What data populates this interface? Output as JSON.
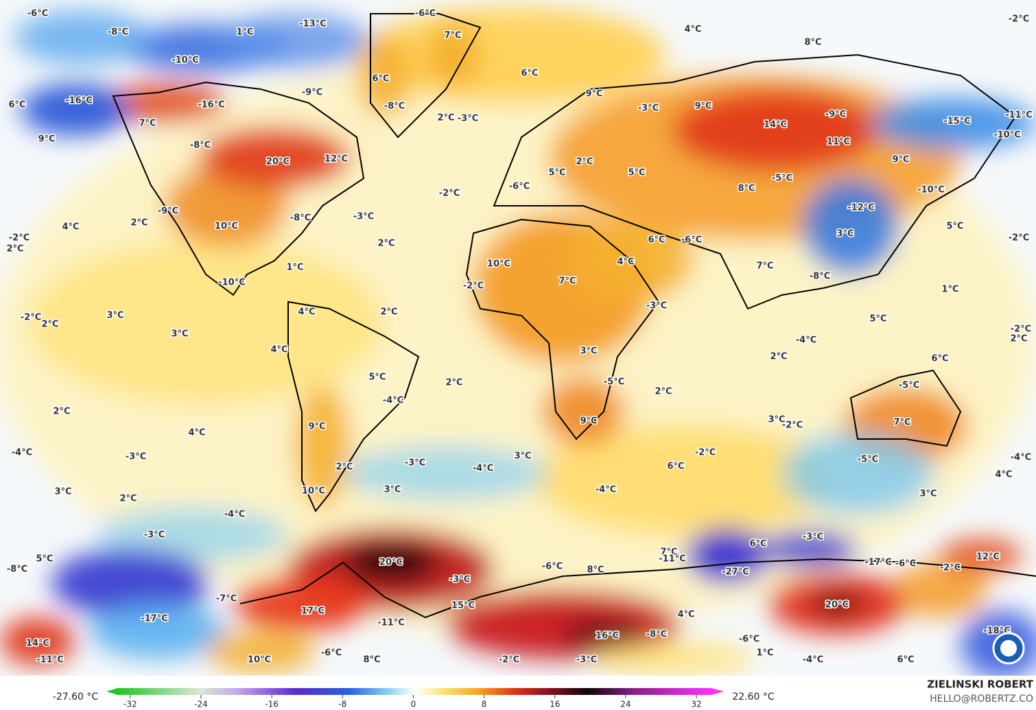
{
  "map": {
    "labels": [
      "-6°C",
      "-8°C",
      "1°C",
      "-13°C",
      "-6°C",
      "7°C",
      "4°C",
      "-2°C",
      "8°C",
      "-10°C",
      "6°C",
      "6°C",
      "-16°C",
      "-16°C",
      "-9°C",
      "-8°C",
      "9°C",
      "-3°C",
      "9°C",
      "6°C",
      "7°C",
      "2°C",
      "-3°C",
      "14°C",
      "-9°C",
      "-15°C",
      "-11°C",
      "9°C",
      "-8°C",
      "11°C",
      "-10°C",
      "20°C",
      "12°C",
      "5°C",
      "2°C",
      "9°C",
      "-6°C",
      "5°C",
      "-2°C",
      "8°C",
      "-5°C",
      "-10°C",
      "-9°C",
      "-8°C",
      "-3°C",
      "-12°C",
      "4°C",
      "2°C",
      "10°C",
      "5°C",
      "-2°C",
      "2°C",
      "2°C",
      "6°C",
      "-6°C",
      "3°C",
      "-2°C",
      "4°C",
      "7°C",
      "10°C",
      "-2°C",
      "7°C",
      "1°C",
      "-10°C",
      "-8°C",
      "1°C",
      "-3°C",
      "4°C",
      "-2°C",
      "2°C",
      "3°C",
      "2°C",
      "5°C",
      "3°C",
      "-4°C",
      "-2°C",
      "2°C",
      "4°C",
      "3°C",
      "2°C",
      "6°C",
      "5°C",
      "-5°C",
      "2°C",
      "-5°C",
      "-4°C",
      "2°C",
      "2°C",
      "9°C",
      "3°C",
      "-2°C",
      "7°C",
      "4°C",
      "9°C",
      "-4°C",
      "-3°C",
      "-2°C",
      "-5°C",
      "-4°C",
      "3°C",
      "-3°C",
      "-4°C",
      "2°C",
      "6°C",
      "4°C",
      "3°C",
      "2°C",
      "3°C",
      "10°C",
      "-4°C",
      "3°C",
      "-4°C",
      "-3°C",
      "-3°C",
      "6°C",
      "5°C",
      "20°C",
      "7°C",
      "-11°C",
      "12°C",
      "-8°C",
      "-6°C",
      "8°C",
      "-27°C",
      "-17°C",
      "-6°C",
      "-2°C",
      "-3°C",
      "-7°C",
      "15°C",
      "20°C",
      "17°C",
      "4°C",
      "-17°C",
      "-11°C",
      "16°C",
      "-8°C",
      "-18°C",
      "14°C",
      "-6°C",
      "-6°C",
      "1°C",
      "-11°C",
      "10°C",
      "8°C",
      "-2°C",
      "-3°C",
      "-4°C",
      "6°C"
    ],
    "colorbar": {
      "min_label": "-27.60 °C",
      "max_label": "22.60 °C",
      "range": [
        -34.7,
        35.1
      ],
      "ticks": [
        -32,
        -24,
        -16,
        -8,
        0,
        8,
        16,
        24,
        32
      ]
    },
    "credit": {
      "author": "ZIELINSKI ROBERT",
      "email": "HELLO@ROBERTZ.CO"
    }
  }
}
